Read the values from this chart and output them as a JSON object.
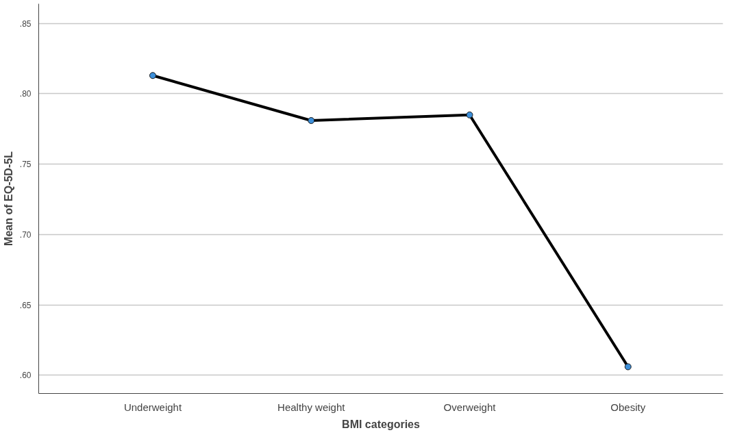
{
  "chart_data": {
    "type": "line",
    "xlabel": "BMI categories",
    "ylabel": "Mean of EQ-5D-5L",
    "categories": [
      "Underweight",
      "Healthy weight",
      "Overweight",
      "Obesity"
    ],
    "series": [
      {
        "color": "#000000",
        "values": [
          0.813,
          0.781,
          0.785,
          0.606
        ]
      }
    ],
    "ylim": [
      0.587,
      0.864
    ],
    "yticks": [
      {
        "value": 0.6,
        "label": ".60"
      },
      {
        "value": 0.65,
        "label": ".65"
      },
      {
        "value": 0.7,
        "label": ".70"
      },
      {
        "value": 0.75,
        "label": ".75"
      },
      {
        "value": 0.8,
        "label": ".80"
      },
      {
        "value": 0.85,
        "label": ".85"
      }
    ],
    "grid": "y",
    "marker": "circle",
    "line_style": "solid"
  }
}
